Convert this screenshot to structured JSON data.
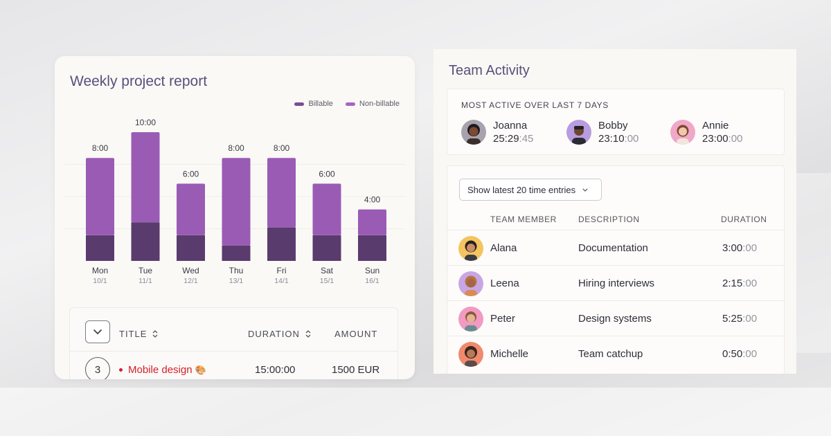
{
  "report": {
    "title": "Weekly project report",
    "legend": [
      {
        "label": "Billable",
        "color": "#7a4d94"
      },
      {
        "label": "Non-billable",
        "color": "#a466c2"
      }
    ],
    "table": {
      "headers": {
        "title": "TITLE",
        "duration": "DURATION",
        "amount": "AMOUNT"
      },
      "rows": [
        {
          "number": "3",
          "name": "Mobile design",
          "emoji": "🎨",
          "duration": "15:00:00",
          "amount": "1500 EUR"
        }
      ]
    }
  },
  "chart_data": {
    "type": "bar",
    "title": "Weekly project report",
    "stacked": true,
    "categories": [
      "Mon",
      "Tue",
      "Wed",
      "Thu",
      "Fri",
      "Sat",
      "Sun"
    ],
    "dates": [
      "10/1",
      "11/1",
      "12/1",
      "13/1",
      "14/1",
      "15/1",
      "16/1"
    ],
    "totals_label": [
      "8:00",
      "10:00",
      "6:00",
      "8:00",
      "8:00",
      "6:00",
      "4:00"
    ],
    "totals_hours": [
      8,
      10,
      6,
      8,
      8,
      6,
      4
    ],
    "series": [
      {
        "name": "Billable",
        "color": "#5a3b6e",
        "values": [
          2,
          3,
          2,
          1.2,
          2.6,
          2,
          2
        ]
      },
      {
        "name": "Non-billable",
        "color": "#9a5bb5",
        "values": [
          6,
          7,
          4,
          6.8,
          5.4,
          4,
          2
        ]
      }
    ],
    "ylim": [
      0,
      10
    ],
    "grid": true
  },
  "team": {
    "title": "Team Activity",
    "most_active_heading": "MOST ACTIVE OVER LAST 7 DAYS",
    "most_active": [
      {
        "name": "Joanna",
        "time_main": "25:29",
        "time_sec": ":45"
      },
      {
        "name": "Bobby",
        "time_main": "23:10",
        "time_sec": ":00"
      },
      {
        "name": "Annie",
        "time_main": "23:00",
        "time_sec": ":00"
      }
    ],
    "entries_select": "Show latest 20 time entries",
    "headers": {
      "member": "TEAM MEMBER",
      "description": "DESCRIPTION",
      "duration": "DURATION"
    },
    "entries": [
      {
        "name": "Alana",
        "description": "Documentation",
        "dur_main": "3:00",
        "dur_sec": ":00"
      },
      {
        "name": "Leena",
        "description": "Hiring interviews",
        "dur_main": "2:15",
        "dur_sec": ":00"
      },
      {
        "name": "Peter",
        "description": "Design systems",
        "dur_main": "5:25",
        "dur_sec": ":00"
      },
      {
        "name": "Michelle",
        "description": "Team catchup",
        "dur_main": "0:50",
        "dur_sec": ":00"
      }
    ]
  }
}
